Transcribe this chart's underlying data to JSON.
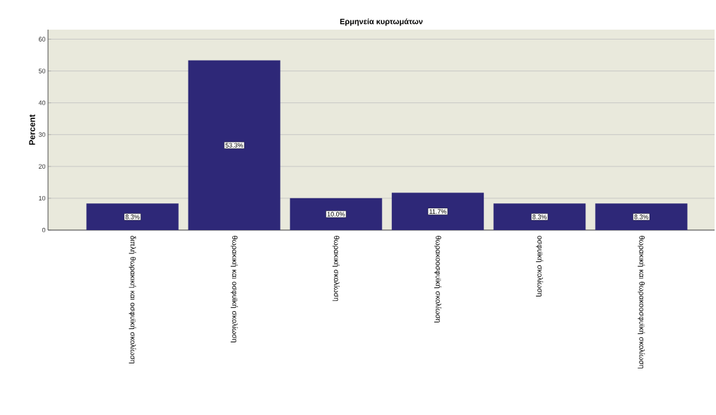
{
  "chart_data": {
    "type": "bar",
    "title": "Ερμηνεία κυρτωμάτων",
    "ylabel": "Percent",
    "categories": [
      "διπλή θωρακική και οσφυϊκή σκολίωση",
      "θωρακική και οσφυϊκή σκολίωση",
      "θωρακική σκολίωση",
      "θωρακοοσφυϊκή σκολίωση",
      "οσφυϊκή σκολίωση",
      "θωρακική και θωρακοοσφυϊκή σκολίωση"
    ],
    "values": [
      8.3,
      53.3,
      10.0,
      11.7,
      8.3,
      8.3
    ],
    "value_labels": [
      "8.3%",
      "53.3%",
      "10.0%",
      "11.7%",
      "8.3%",
      "8.3%"
    ],
    "color": "#2e2878",
    "ylim": [
      0,
      63
    ],
    "yticks": [
      0,
      10,
      20,
      30,
      40,
      50,
      60
    ],
    "grid": "y"
  }
}
